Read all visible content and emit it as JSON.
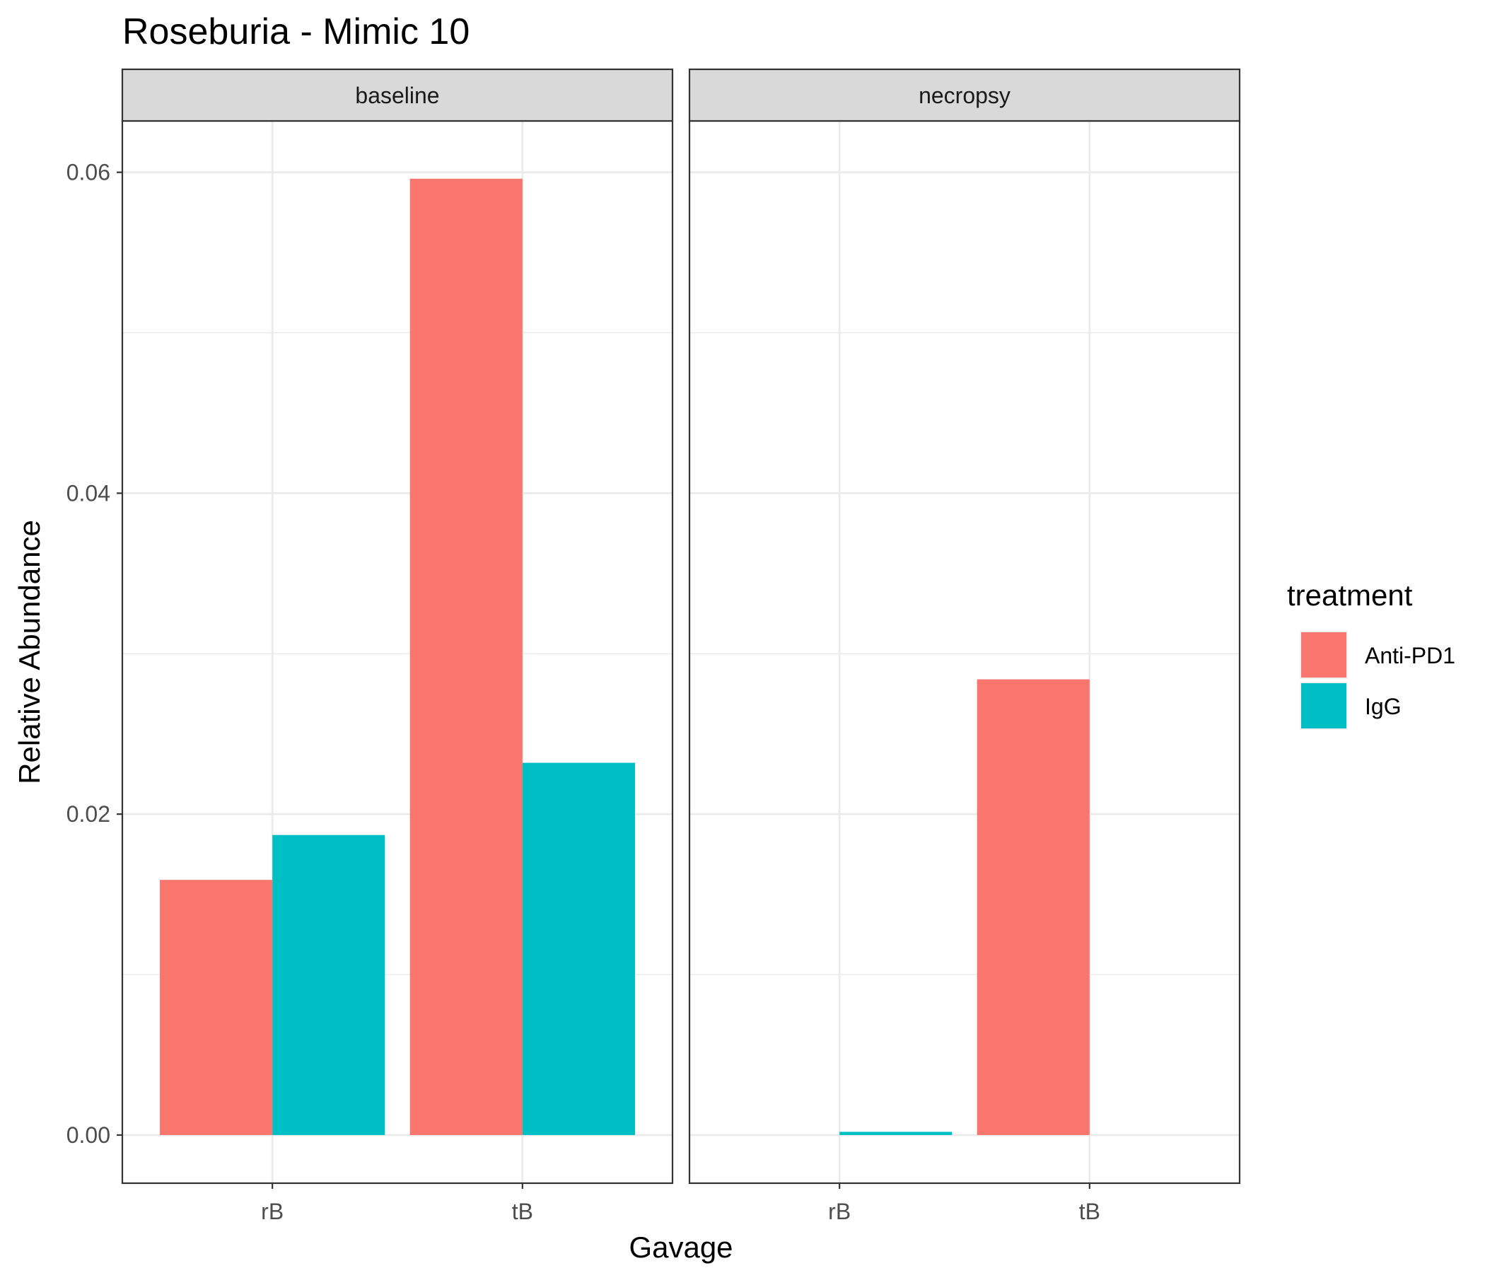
{
  "chart_data": {
    "type": "bar",
    "title": "Roseburia - Mimic 10",
    "xlabel": "Gavage",
    "ylabel": "Relative Abundance",
    "ylim": [
      -0.003,
      0.0632
    ],
    "yticks": [
      0.0,
      0.02,
      0.04,
      0.06
    ],
    "ytick_labels": [
      "0.00",
      "0.02",
      "0.04",
      "0.06"
    ],
    "categories": [
      "rB",
      "tB"
    ],
    "grid": true,
    "facets": [
      "baseline",
      "necropsy"
    ],
    "legend": {
      "title": "treatment",
      "placement": "right",
      "entries": [
        {
          "name": "Anti-PD1",
          "color": "#F8766D"
        },
        {
          "name": "IgG",
          "color": "#00BFC4"
        }
      ]
    },
    "panels": [
      {
        "facet": "baseline",
        "series": [
          {
            "name": "Anti-PD1",
            "values": [
              0.0159,
              0.0596
            ]
          },
          {
            "name": "IgG",
            "values": [
              0.0187,
              0.0232
            ]
          }
        ]
      },
      {
        "facet": "necropsy",
        "series": [
          {
            "name": "Anti-PD1",
            "values": [
              null,
              0.0284
            ]
          },
          {
            "name": "IgG",
            "values": [
              0.0002,
              null
            ]
          }
        ]
      }
    ]
  }
}
